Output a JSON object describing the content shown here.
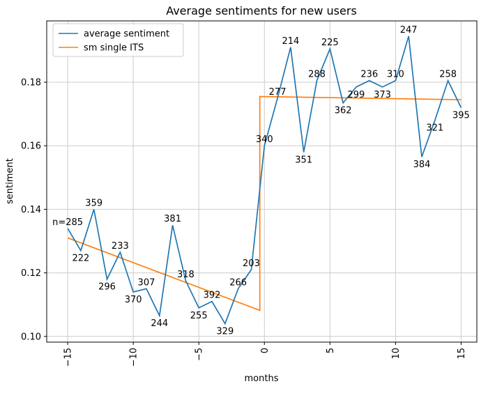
{
  "chart_data": {
    "type": "line",
    "title": "Average sentiments for new users",
    "xlabel": "months",
    "ylabel": "sentiment",
    "xlim": [
      -16.6,
      16.2
    ],
    "ylim": [
      0.0982,
      0.1993
    ],
    "xticks": [
      -15,
      -10,
      -5,
      0,
      5,
      10,
      15
    ],
    "yticks": [
      0.1,
      0.12,
      0.14,
      0.16,
      0.18
    ],
    "grid": true,
    "legend_position": "upper left",
    "colors": {
      "average_sentiment": "#1f77b4",
      "sm_single_its": "#ff7f0e",
      "grid": "#cccccc",
      "spine": "#000000",
      "legend_border": "#cccccc"
    },
    "series": [
      {
        "name": "average sentiment",
        "x": [
          -15,
          -14,
          -13,
          -12,
          -11,
          -10,
          -9,
          -8,
          -7,
          -6,
          -5,
          -4,
          -3,
          -2,
          -1,
          0,
          1,
          2,
          3,
          4,
          5,
          6,
          7,
          8,
          9,
          10,
          11,
          12,
          13,
          14,
          15
        ],
        "y": [
          0.134,
          0.127,
          0.14,
          0.118,
          0.1265,
          0.114,
          0.115,
          0.1065,
          0.135,
          0.1175,
          0.109,
          0.111,
          0.104,
          0.115,
          0.121,
          0.16,
          0.175,
          0.191,
          0.158,
          0.1805,
          0.1905,
          0.1735,
          0.1785,
          0.1805,
          0.1785,
          0.1805,
          0.1945,
          0.1565,
          0.168,
          0.1805,
          0.172
        ],
        "point_labels": [
          "n=285",
          "222",
          "359",
          "296",
          "233",
          "370",
          "307",
          "244",
          "381",
          "318",
          "255",
          "392",
          "329",
          "266",
          "203",
          "340",
          "277",
          "214",
          "351",
          "288",
          "225",
          "362",
          "299",
          "236",
          "373",
          "310",
          "247",
          "384",
          "321",
          "258",
          "395"
        ],
        "label_side": [
          "above",
          "below",
          "above",
          "below",
          "above",
          "below",
          "above",
          "below",
          "above",
          "above",
          "below",
          "above",
          "below",
          "above",
          "above",
          "above",
          "above",
          "above",
          "below",
          "above",
          "above",
          "below",
          "below",
          "above",
          "below",
          "above",
          "above",
          "below",
          "below",
          "above",
          "below"
        ]
      },
      {
        "name": "sm single ITS",
        "x": [
          -15,
          -0.35,
          -0.35,
          15
        ],
        "y": [
          0.131,
          0.1082,
          0.1755,
          0.1745
        ]
      }
    ]
  }
}
